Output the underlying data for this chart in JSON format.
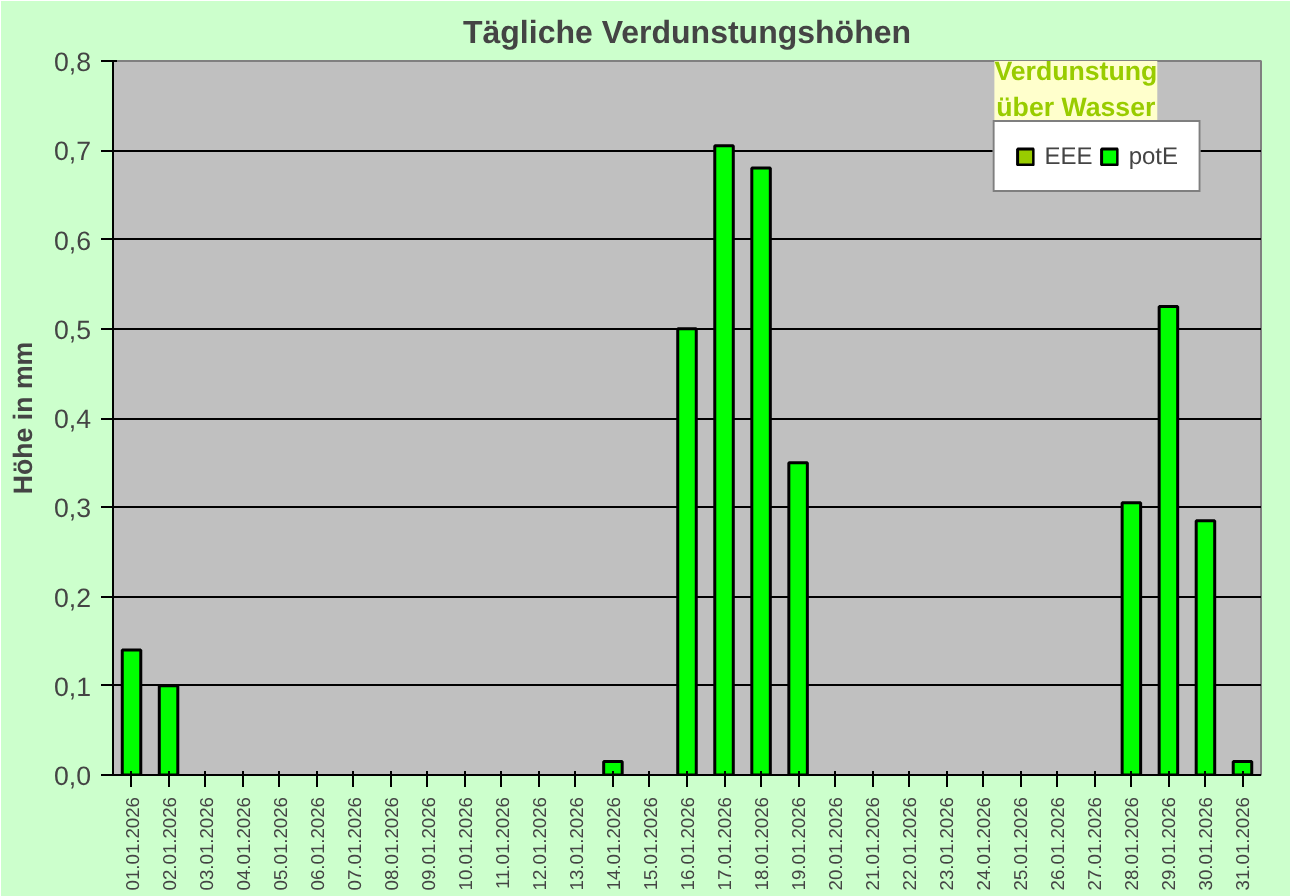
{
  "chart_data": {
    "type": "bar",
    "title": "Tägliche Verdunstungshöhen",
    "ylabel": "Höhe in mm",
    "annotations": [
      "Verdunstung\nüber Wasser"
    ],
    "categories": [
      "01.01.2026",
      "02.01.2026",
      "03.01.2026",
      "04.01.2026",
      "05.01.2026",
      "06.01.2026",
      "07.01.2026",
      "08.01.2026",
      "09.01.2026",
      "10.01.2026",
      "11.01.2026",
      "12.01.2026",
      "13.01.2026",
      "14.01.2026",
      "15.01.2026",
      "16.01.2026",
      "17.01.2026",
      "18.01.2026",
      "19.01.2026",
      "20.01.2026",
      "21.01.2026",
      "22.01.2026",
      "23.01.2026",
      "24.01.2026",
      "25.01.2026",
      "26.01.2026",
      "27.01.2026",
      "28.01.2026",
      "29.01.2026",
      "30.01.2026",
      "31.01.2026"
    ],
    "series": [
      {
        "name": "EEE",
        "color": "#99cc00",
        "values": [
          null,
          null,
          null,
          null,
          null,
          null,
          null,
          null,
          null,
          null,
          null,
          null,
          null,
          null,
          null,
          null,
          null,
          null,
          null,
          null,
          null,
          null,
          null,
          null,
          null,
          null,
          null,
          null,
          null,
          null,
          null
        ]
      },
      {
        "name": "potE",
        "color": "#00ff00",
        "values": [
          0.14,
          0.1,
          null,
          null,
          null,
          null,
          null,
          null,
          null,
          null,
          null,
          null,
          null,
          0.015,
          null,
          0.5,
          0.705,
          0.68,
          0.35,
          null,
          null,
          null,
          null,
          null,
          null,
          null,
          null,
          0.305,
          0.525,
          0.285,
          0.015
        ]
      }
    ],
    "ylim": [
      0,
      0.8
    ],
    "yticks": [
      {
        "value": 0,
        "label": "0,0"
      },
      {
        "value": 0.1,
        "label": "0,1"
      },
      {
        "value": 0.2,
        "label": "0,2"
      },
      {
        "value": 0.3,
        "label": "0,3"
      },
      {
        "value": 0.4,
        "label": "0,4"
      },
      {
        "value": 0.5,
        "label": "0,5"
      },
      {
        "value": 0.6,
        "label": "0,6"
      },
      {
        "value": 0.7,
        "label": "0,7"
      },
      {
        "value": 0.8,
        "label": "0,8"
      }
    ],
    "grid": "y",
    "legend": "top right"
  }
}
